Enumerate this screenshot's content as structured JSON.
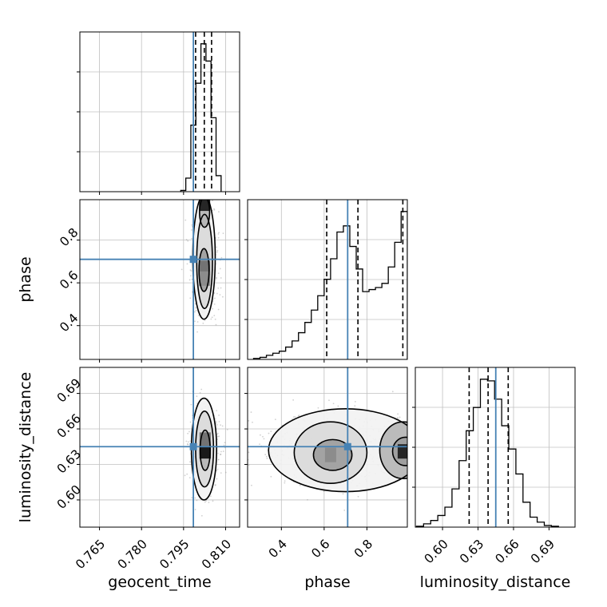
{
  "chart_data": {
    "type": "corner",
    "title": "",
    "parameters": [
      "geocent_time",
      "phase",
      "luminosity_distance"
    ],
    "truths": {
      "geocent_time": 0.7985,
      "phase": 0.71,
      "luminosity_distance": 0.645
    },
    "colors": {
      "truth": "#4682b4",
      "hist": "#000000",
      "grid": "#c0c0c0",
      "quantile": "#000000"
    },
    "grid": true,
    "axes": {
      "geocent_time": {
        "range": [
          0.758,
          0.815
        ],
        "ticks": [
          0.765,
          0.78,
          0.795,
          0.81
        ],
        "tick_labels": [
          "0.765",
          "0.780",
          "0.795",
          "0.810"
        ]
      },
      "phase": {
        "range": [
          0.242,
          0.989
        ],
        "ticks": [
          0.4,
          0.6,
          0.8
        ],
        "tick_labels": [
          "0.4",
          "0.6",
          "0.8"
        ]
      },
      "luminosity_distance": {
        "range": [
          0.577,
          0.712
        ],
        "ticks": [
          0.6,
          0.63,
          0.66,
          0.69
        ],
        "tick_labels": [
          "0.60",
          "0.63",
          "0.66",
          "0.69"
        ]
      }
    },
    "marginals": [
      {
        "param": "geocent_time",
        "bins": [
          0.794,
          0.7958,
          0.7976,
          0.7994,
          0.8012,
          0.803,
          0.8048,
          0.8066,
          0.8084
        ],
        "counts": [
          0.5,
          5.5,
          27,
          44,
          60,
          53,
          30,
          6.5
        ],
        "quantiles": [
          0.7993,
          0.8024,
          0.805
        ]
      },
      {
        "param": "phase",
        "bins": [
          0.27,
          0.3,
          0.33,
          0.36,
          0.39,
          0.42,
          0.45,
          0.48,
          0.51,
          0.54,
          0.57,
          0.6,
          0.63,
          0.66,
          0.69,
          0.72,
          0.75,
          0.78,
          0.81,
          0.84,
          0.87,
          0.9,
          0.93,
          0.96,
          0.989
        ],
        "counts": [
          0.5,
          1,
          2,
          3,
          4,
          6,
          9,
          13,
          18,
          24,
          31,
          39,
          49,
          62,
          65,
          55,
          44,
          33,
          34,
          35,
          37,
          45,
          57,
          72
        ],
        "quantiles": [
          0.612,
          0.758,
          0.968
        ]
      },
      {
        "param": "luminosity_distance",
        "bins": [
          0.578,
          0.584,
          0.59,
          0.596,
          0.602,
          0.608,
          0.614,
          0.62,
          0.626,
          0.632,
          0.638,
          0.644,
          0.65,
          0.656,
          0.662,
          0.668,
          0.674,
          0.68,
          0.686,
          0.692,
          0.698
        ],
        "counts": [
          0.5,
          2,
          4,
          7,
          12,
          23,
          40,
          58,
          72,
          89,
          88,
          77,
          61,
          47,
          32,
          15,
          6,
          3,
          1,
          0.5
        ],
        "quantiles": [
          0.6225,
          0.6385,
          0.6555
        ]
      }
    ],
    "joint": [
      {
        "x": "geocent_time",
        "y": "phase",
        "scatter": {
          "center": [
            0.8025,
            0.68
          ],
          "spread": [
            0.0025,
            0.13
          ],
          "n": 380
        },
        "contours": [
          {
            "level": "outer",
            "center": [
              0.8023,
              0.72
            ],
            "radii": [
              0.004,
              0.29
            ]
          },
          {
            "level": "mid",
            "center": [
              0.8025,
              0.7
            ],
            "radii": [
              0.0028,
              0.22
            ]
          },
          {
            "level": "inner-upper",
            "center": [
              0.8025,
              0.93
            ],
            "radii": [
              0.0018,
              0.07
            ]
          },
          {
            "level": "inner-lower",
            "center": [
              0.8023,
              0.66
            ],
            "radii": [
              0.0018,
              0.1
            ]
          }
        ],
        "density_cells": [
          {
            "x": 0.8025,
            "y": 0.97,
            "level": 0.85
          },
          {
            "x": 0.8025,
            "y": 0.67,
            "level": 0.55
          },
          {
            "x": 0.8025,
            "y": 0.62,
            "level": 0.45
          }
        ]
      },
      {
        "x": "geocent_time",
        "y": "luminosity_distance",
        "scatter": {
          "center": [
            0.8025,
            0.643
          ],
          "spread": [
            0.0028,
            0.017
          ],
          "n": 380
        },
        "contours": [
          {
            "level": "outer",
            "center": [
              0.8023,
              0.643
            ],
            "radii": [
              0.0045,
              0.043
            ]
          },
          {
            "level": "mid",
            "center": [
              0.8025,
              0.643
            ],
            "radii": [
              0.0032,
              0.032
            ]
          },
          {
            "level": "inner",
            "center": [
              0.8027,
              0.642
            ],
            "radii": [
              0.0018,
              0.017
            ]
          }
        ],
        "density_cells": [
          {
            "x": 0.8027,
            "y": 0.641,
            "level": 0.9
          },
          {
            "x": 0.8027,
            "y": 0.651,
            "level": 0.55
          }
        ]
      },
      {
        "x": "phase",
        "y": "luminosity_distance",
        "scatter": {
          "center": [
            0.68,
            0.642
          ],
          "spread": [
            0.2,
            0.015
          ],
          "n": 600
        },
        "contours": [
          {
            "level": "outer",
            "center": [
              0.7,
              0.642
            ],
            "radii": [
              0.36,
              0.035
            ]
          },
          {
            "level": "mid-left",
            "center": [
              0.63,
              0.64
            ],
            "radii": [
              0.17,
              0.026
            ]
          },
          {
            "level": "mid-right",
            "center": [
              0.97,
              0.642
            ],
            "radii": [
              0.11,
              0.024
            ]
          },
          {
            "level": "inner-left",
            "center": [
              0.64,
              0.638
            ],
            "radii": [
              0.09,
              0.013
            ]
          },
          {
            "level": "inner-right",
            "center": [
              0.98,
              0.641
            ],
            "radii": [
              0.06,
              0.012
            ]
          }
        ],
        "density_cells": [
          {
            "x": 0.63,
            "y": 0.638,
            "level": 0.45
          },
          {
            "x": 0.97,
            "y": 0.641,
            "level": 0.85
          }
        ]
      }
    ]
  }
}
